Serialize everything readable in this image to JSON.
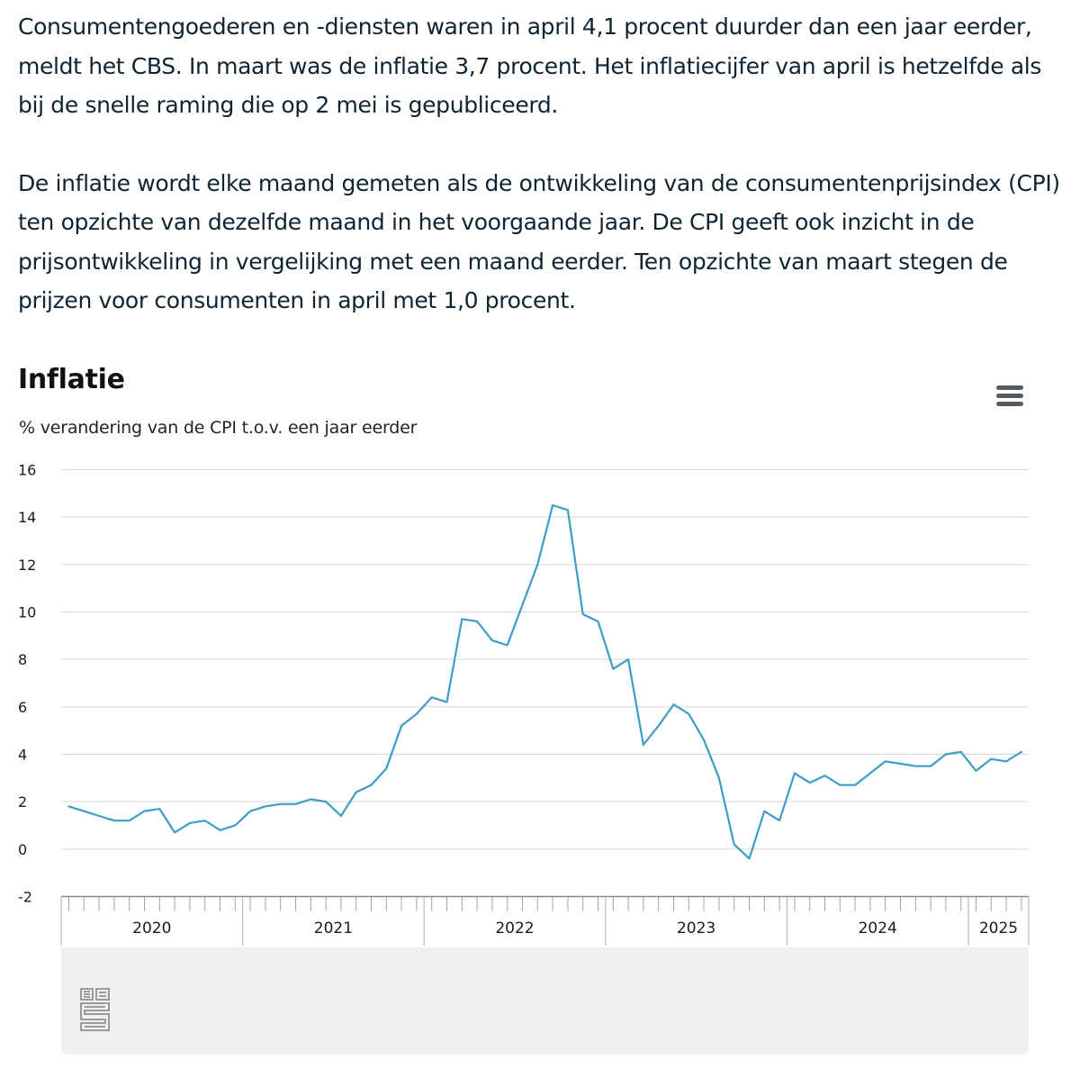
{
  "article": {
    "paragraphs": [
      "Consumentengoederen en -diensten waren in april 4,1 procent duurder dan een jaar eerder, meldt het CBS. In maart was de inflatie 3,7 procent. Het inflatiecijfer van april is hetzelfde als bij de snelle raming die op 2 mei is gepubliceerd.",
      "De inflatie wordt elke maand gemeten als de ontwikkeling van de consumentenprijsindex (CPI) ten opzichte van dezelfde maand in het voorgaande jaar. De CPI geeft ook inzicht in de prijsontwikkeling in vergelijking met een maand eerder. Ten opzichte van maart stegen de prijzen voor consumenten in april met 1,0 procent."
    ]
  },
  "chart_data": {
    "type": "line",
    "title": "Inflatie",
    "subtitle": "% verandering van de CPI t.o.v. een jaar eerder",
    "ylabel": "",
    "xlabel": "",
    "ylim": [
      -2,
      16
    ],
    "yticks": [
      "16",
      "14",
      "12",
      "10",
      "8",
      "6",
      "4",
      "2",
      "0",
      "-2"
    ],
    "year_labels": [
      "2020",
      "2021",
      "2022",
      "2023",
      "2024",
      "2025"
    ],
    "x_start": "2020-01",
    "x_end": "2025-04",
    "grid": true,
    "series": [
      {
        "color": "#3e9dc4",
        "values": [
          1.8,
          1.6,
          1.4,
          1.2,
          1.2,
          1.6,
          1.7,
          0.7,
          1.1,
          1.2,
          0.8,
          1.0,
          1.6,
          1.8,
          1.9,
          1.9,
          2.1,
          2.0,
          1.4,
          2.4,
          2.7,
          3.4,
          5.2,
          5.7,
          6.4,
          6.2,
          9.7,
          9.6,
          8.8,
          8.6,
          10.3,
          12.0,
          14.5,
          14.3,
          9.9,
          9.6,
          7.6,
          8.0,
          4.4,
          5.2,
          6.1,
          5.7,
          4.6,
          3.0,
          0.2,
          -0.4,
          1.6,
          1.2,
          3.2,
          2.8,
          3.1,
          2.7,
          2.7,
          3.2,
          3.7,
          3.6,
          3.5,
          3.5,
          4.0,
          4.1,
          3.3,
          3.8,
          3.7,
          4.1
        ]
      }
    ]
  },
  "ui": {
    "menu_icon": "hamburger-menu-icon",
    "logo_icon": "cbs-logo-icon",
    "colors": {
      "line": "#3e9dc4",
      "grid": "#d8d8d8",
      "navigator": "#f0f0f0"
    }
  }
}
